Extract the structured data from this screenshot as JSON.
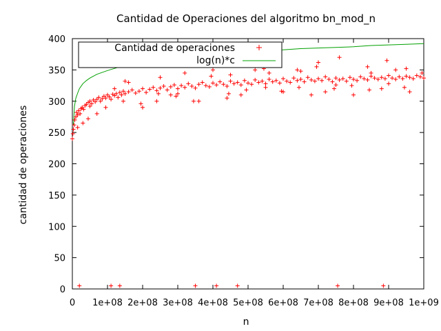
{
  "chart_data": {
    "type": "scatter",
    "title": "Cantidad de Operaciones del algoritmo bn_mod_n",
    "xlabel": "n",
    "ylabel": "cantidad de operaciones",
    "xlim": [
      0,
      1000000000
    ],
    "ylim": [
      0,
      400
    ],
    "x_ticks": [
      0,
      100000000,
      200000000,
      300000000,
      400000000,
      500000000,
      600000000,
      700000000,
      800000000,
      900000000,
      1000000000
    ],
    "x_tick_labels": [
      "0",
      "1e+08",
      "2e+08",
      "3e+08",
      "4e+08",
      "5e+08",
      "6e+08",
      "7e+08",
      "8e+08",
      "9e+08",
      "1e+09"
    ],
    "y_ticks": [
      0,
      50,
      100,
      150,
      200,
      250,
      300,
      350,
      400
    ],
    "y_tick_labels": [
      "0",
      "50",
      "100",
      "150",
      "200",
      "250",
      "300",
      "350",
      "400"
    ],
    "grid": false,
    "legend_position": "top-left",
    "colors": {
      "points": "#ff0000",
      "curve": "#00a000",
      "axes": "#000000"
    },
    "series": [
      {
        "name": "Cantidad de operaciones",
        "kind": "points",
        "marker": "plus",
        "x": [
          0,
          1500000,
          3000000,
          5000000,
          7000000,
          10000000,
          12000000,
          15000000,
          18000000,
          22000000,
          25000000,
          28000000,
          32000000,
          36000000,
          40000000,
          45000000,
          50000000,
          55000000,
          60000000,
          65000000,
          70000000,
          75000000,
          80000000,
          85000000,
          90000000,
          95000000,
          100000000,
          105000000,
          110000000,
          115000000,
          120000000,
          125000000,
          130000000,
          135000000,
          140000000,
          145000000,
          150000000,
          160000000,
          170000000,
          180000000,
          190000000,
          200000000,
          210000000,
          220000000,
          230000000,
          240000000,
          250000000,
          260000000,
          270000000,
          280000000,
          290000000,
          300000000,
          310000000,
          320000000,
          330000000,
          340000000,
          350000000,
          360000000,
          370000000,
          380000000,
          390000000,
          400000000,
          410000000,
          420000000,
          430000000,
          440000000,
          450000000,
          460000000,
          470000000,
          480000000,
          490000000,
          500000000,
          510000000,
          520000000,
          530000000,
          540000000,
          550000000,
          560000000,
          570000000,
          580000000,
          590000000,
          600000000,
          610000000,
          620000000,
          630000000,
          640000000,
          650000000,
          660000000,
          670000000,
          680000000,
          690000000,
          700000000,
          710000000,
          720000000,
          730000000,
          740000000,
          750000000,
          760000000,
          770000000,
          780000000,
          790000000,
          800000000,
          810000000,
          820000000,
          830000000,
          840000000,
          850000000,
          860000000,
          870000000,
          880000000,
          890000000,
          900000000,
          910000000,
          920000000,
          930000000,
          940000000,
          950000000,
          960000000,
          970000000,
          980000000,
          990000000,
          1000000000,
          20000000,
          110000000,
          135000000,
          350000000,
          410000000,
          470000000,
          755000000,
          885000000,
          30000000,
          70000000,
          120000000,
          160000000,
          200000000,
          240000000,
          280000000,
          320000000,
          360000000,
          400000000,
          440000000,
          480000000,
          520000000,
          560000000,
          600000000,
          640000000,
          680000000,
          720000000,
          760000000,
          800000000,
          840000000,
          880000000,
          920000000,
          960000000,
          995000000,
          15000000,
          45000000,
          95000000,
          145000000,
          195000000,
          245000000,
          295000000,
          345000000,
          395000000,
          445000000,
          495000000,
          545000000,
          595000000,
          645000000,
          695000000,
          745000000,
          795000000,
          845000000,
          895000000,
          945000000,
          50000000,
          150000000,
          250000000,
          300000000,
          450000000,
          550000000,
          650000000,
          700000000,
          750000000,
          850000000,
          900000000,
          950000000
        ],
        "y": [
          240,
          248,
          255,
          262,
          270,
          275,
          282,
          278,
          285,
          280,
          288,
          290,
          287,
          293,
          295,
          298,
          300,
          296,
          302,
          299,
          303,
          306,
          300,
          304,
          308,
          305,
          310,
          307,
          303,
          311,
          309,
          312,
          306,
          314,
          310,
          316,
          312,
          315,
          318,
          313,
          316,
          320,
          314,
          319,
          322,
          317,
          321,
          324,
          318,
          323,
          326,
          320,
          325,
          322,
          328,
          324,
          321,
          327,
          330,
          325,
          323,
          329,
          326,
          331,
          327,
          324,
          332,
          328,
          330,
          326,
          333,
          329,
          327,
          334,
          330,
          332,
          328,
          335,
          331,
          333,
          329,
          336,
          332,
          330,
          337,
          333,
          335,
          331,
          338,
          334,
          332,
          336,
          333,
          339,
          335,
          331,
          337,
          334,
          336,
          332,
          338,
          335,
          333,
          339,
          336,
          334,
          340,
          337,
          335,
          338,
          336,
          341,
          337,
          335,
          339,
          336,
          340,
          338,
          336,
          341,
          339,
          337,
          5,
          5,
          5,
          5,
          5,
          5,
          5,
          5,
          265,
          280,
          320,
          330,
          290,
          300,
          310,
          345,
          300,
          350,
          305,
          310,
          350,
          345,
          315,
          350,
          310,
          315,
          370,
          310,
          355,
          320,
          350,
          315,
          345,
          258,
          272,
          290,
          300,
          296,
          312,
          308,
          300,
          340,
          312,
          318,
          352,
          316,
          322,
          355,
          320,
          325,
          318,
          365,
          322,
          292,
          332,
          338,
          312,
          342,
          322,
          348,
          362,
          326,
          345,
          328,
          352
        ]
      },
      {
        "name": "log(n)*c",
        "kind": "line",
        "x": [
          3000000,
          6000000,
          10000000,
          15000000,
          20000000,
          30000000,
          40000000,
          50000000,
          70000000,
          100000000,
          130000000,
          160000000,
          200000000,
          250000000,
          300000000,
          350000000,
          400000000,
          450000000,
          500000000,
          550000000,
          600000000,
          650000000,
          700000000,
          750000000,
          800000000,
          850000000,
          900000000,
          950000000,
          1000000000
        ],
        "y": [
          262,
          292,
          305,
          313,
          320,
          328,
          333,
          337,
          343,
          349,
          354,
          357,
          361,
          366,
          370,
          372,
          375,
          377,
          379,
          381,
          382,
          384,
          385,
          386,
          387,
          389,
          390,
          391,
          392
        ]
      }
    ]
  }
}
